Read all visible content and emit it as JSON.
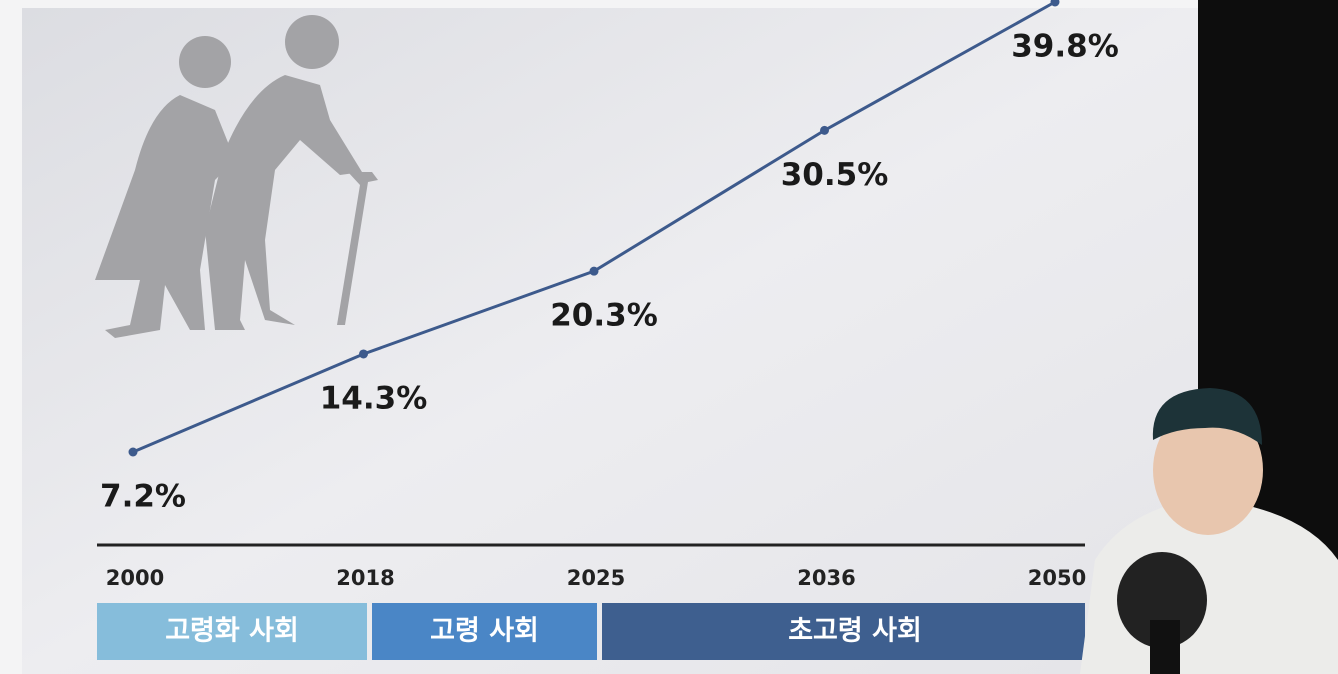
{
  "chart_data": {
    "type": "line",
    "categories": [
      "2000",
      "2018",
      "2025",
      "2036",
      "2050"
    ],
    "values": [
      7.2,
      14.3,
      20.3,
      30.5,
      39.8
    ],
    "value_labels": [
      "7.2%",
      "14.3%",
      "20.3%",
      "30.5%",
      "39.8%"
    ],
    "color": "#3d5a8c",
    "bands": [
      {
        "label": "고령화 사회",
        "color": "#86bddb"
      },
      {
        "label": "고령 사회",
        "color": "#4a86c6"
      },
      {
        "label": "초고령 사회",
        "color": "#3e5f8f"
      }
    ]
  }
}
